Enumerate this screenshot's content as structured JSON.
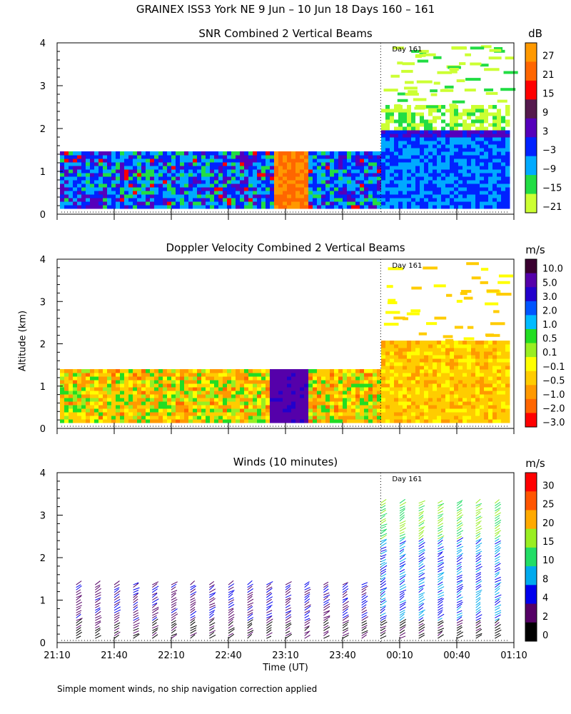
{
  "title": "GRAINEX ISS3 York NE   9 Jun – 10 Jun 18 Days 160 – 161",
  "ylabel": "Altitude (km)",
  "xlabel": "Time (UT)",
  "footnote": "Simple moment winds, no ship navigation correction applied",
  "x_ticks": [
    "21:10",
    "21:40",
    "22:10",
    "22:40",
    "23:10",
    "23:40",
    "00:10",
    "00:40",
    "01:10"
  ],
  "y_ticks": [
    "0",
    "1",
    "2",
    "3",
    "4"
  ],
  "day_marker": "Day 161",
  "chart_data": [
    {
      "type": "heatmap",
      "title": "SNR Combined 2 Vertical Beams",
      "colorbar_unit": "dB",
      "colorbar_labels": [
        "27",
        "21",
        "15",
        "9",
        "3",
        "−3",
        "−9",
        "−15",
        "−21"
      ],
      "colorbar_colors": [
        "#ff9900",
        "#ff6600",
        "#ff0000",
        "#551a4d",
        "#5500bb",
        "#0022ff",
        "#00aaff",
        "#22dd44",
        "#ccff33"
      ],
      "x_range": [
        "21:10",
        "01:10"
      ],
      "ylim": [
        0,
        4
      ],
      "day_boundary": "00:00",
      "coverage_top_km_before_boundary": 1.4,
      "coverage_top_km_after_boundary": 4.0
    },
    {
      "type": "heatmap",
      "title": "Doppler Velocity Combined 2 Vertical Beams",
      "colorbar_unit": "m/s",
      "colorbar_labels": [
        "10.0",
        "5.0",
        "3.0",
        "2.0",
        "1.0",
        "0.5",
        "0.1",
        "−0.1",
        "−0.5",
        "−1.0",
        "−2.0",
        "−3.0"
      ],
      "colorbar_colors": [
        "#3a0030",
        "#5500aa",
        "#2200cc",
        "#0055ff",
        "#00bbff",
        "#22dd22",
        "#99ee22",
        "#ffff00",
        "#ffcc00",
        "#ff9900",
        "#ff6600",
        "#ff0000"
      ],
      "x_range": [
        "21:10",
        "01:10"
      ],
      "ylim": [
        0,
        4
      ],
      "day_boundary": "00:00",
      "coverage_top_km_before_boundary": 1.4,
      "coverage_top_km_after_boundary": 4.0
    },
    {
      "type": "scatter",
      "title": "Winds (10 minutes)",
      "colorbar_unit": "m/s",
      "colorbar_labels": [
        "30",
        "25",
        "20",
        "15",
        "10",
        "8",
        "4",
        "2",
        "0"
      ],
      "colorbar_colors": [
        "#ff0000",
        "#ff5500",
        "#ffaa00",
        "#99ee22",
        "#22dd66",
        "#00aaee",
        "#0000ee",
        "#550066",
        "#000000"
      ],
      "x_range": [
        "21:10",
        "01:10"
      ],
      "ylim": [
        0,
        4
      ],
      "day_boundary": "00:00"
    }
  ]
}
